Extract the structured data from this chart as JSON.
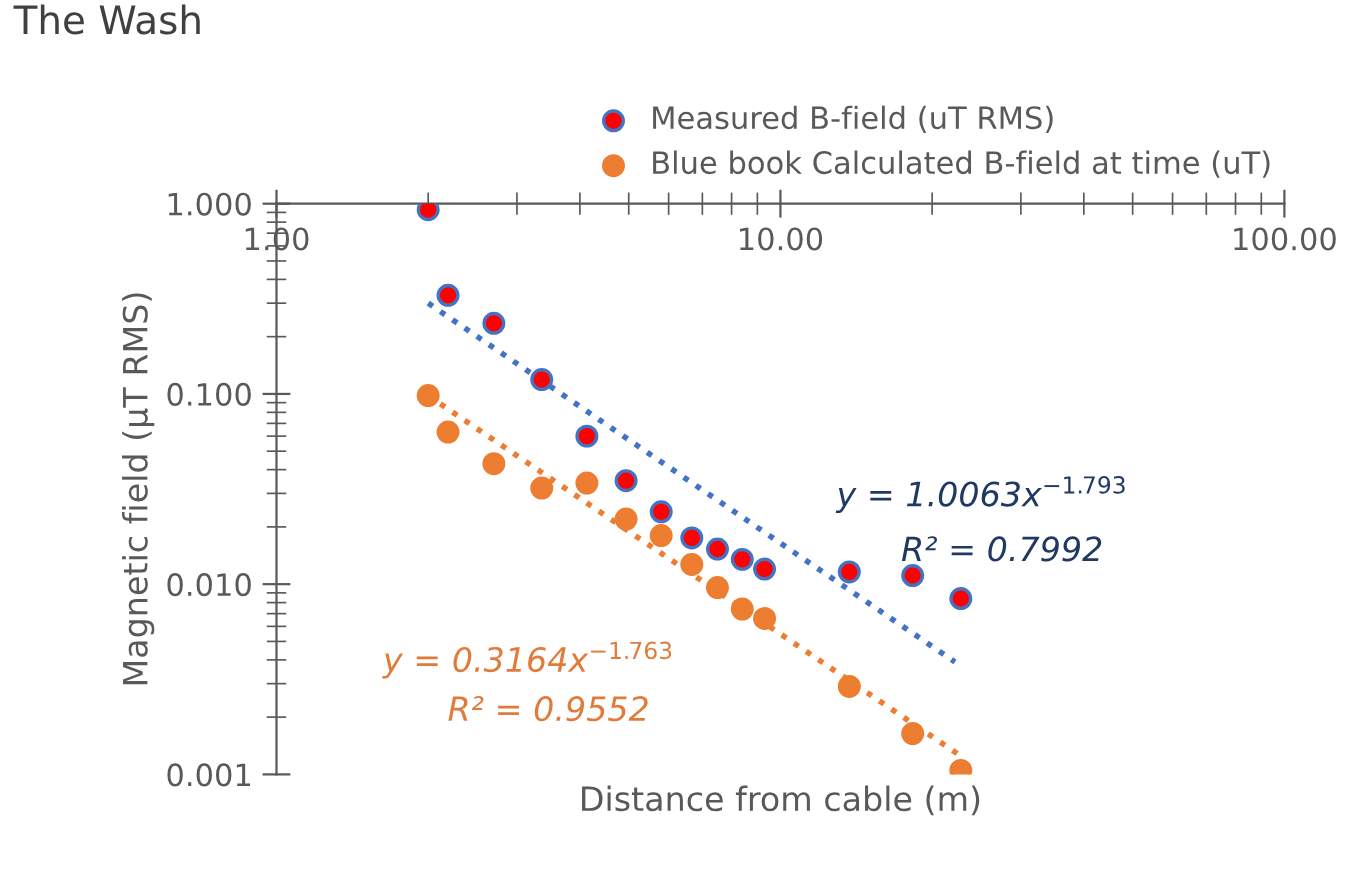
{
  "chart_data": {
    "type": "scatter",
    "title": "The Wash",
    "xlabel": "Distance from cable (m)",
    "ylabel": "Magnetic field (µT RMS)",
    "log": "xy",
    "xlim": [
      1,
      100
    ],
    "xticks": [
      {
        "value": 1,
        "label": "1.00"
      },
      {
        "value": 10,
        "label": "10.00"
      },
      {
        "value": 100,
        "label": "100.00"
      }
    ],
    "ylim": [
      0.001,
      1
    ],
    "yticks": [
      {
        "value": 0.001,
        "label": "0.001"
      },
      {
        "value": 0.01,
        "label": "0.010"
      },
      {
        "value": 0.1,
        "label": "0.100"
      },
      {
        "value": 1,
        "label": "1.000"
      }
    ],
    "grid": false,
    "legend": "top right",
    "marker": "circle",
    "series": [
      {
        "name": "Measured B-field (uT RMS)",
        "color": "#ff0000",
        "x": [
          2.0,
          2.19,
          2.7,
          3.36,
          4.13,
          4.94,
          5.8,
          6.67,
          7.5,
          8.4,
          9.3,
          13.7,
          18.3,
          22.8
        ],
        "values": [
          0.93,
          0.33,
          0.235,
          0.119,
          0.06,
          0.035,
          0.024,
          0.0175,
          0.0153,
          0.0135,
          0.012,
          0.0116,
          0.0111,
          0.0084
        ]
      },
      {
        "name": "Blue book Calculated B-field at time (uT)",
        "color": "#ed7d31",
        "x": [
          2.0,
          2.19,
          2.7,
          3.36,
          4.13,
          4.94,
          5.8,
          6.67,
          7.5,
          8.4,
          9.3,
          13.7,
          18.3,
          22.8
        ],
        "values": [
          0.098,
          0.063,
          0.043,
          0.032,
          0.034,
          0.022,
          0.018,
          0.0127,
          0.0096,
          0.0074,
          0.0066,
          0.0029,
          0.00164,
          0.00105
        ]
      },
      {
        "type": "line",
        "color": "#4472c4",
        "line_style": "dotted",
        "marker": "none",
        "x": [
          2.0,
          22.2
        ],
        "values": [
          0.3,
          0.0039
        ]
      },
      {
        "type": "line",
        "color": "#ed7d31",
        "line_style": "dotted",
        "marker": "none",
        "x": [
          2.0,
          22.6
        ],
        "values": [
          0.098,
          0.00127
        ]
      }
    ],
    "annotations": [
      "y = 1.0063x$^{−1.793}$",
      "R² = 0.7992",
      "y = 0.3164x$^{−1.763}$",
      "R² = 0.9552"
    ]
  }
}
